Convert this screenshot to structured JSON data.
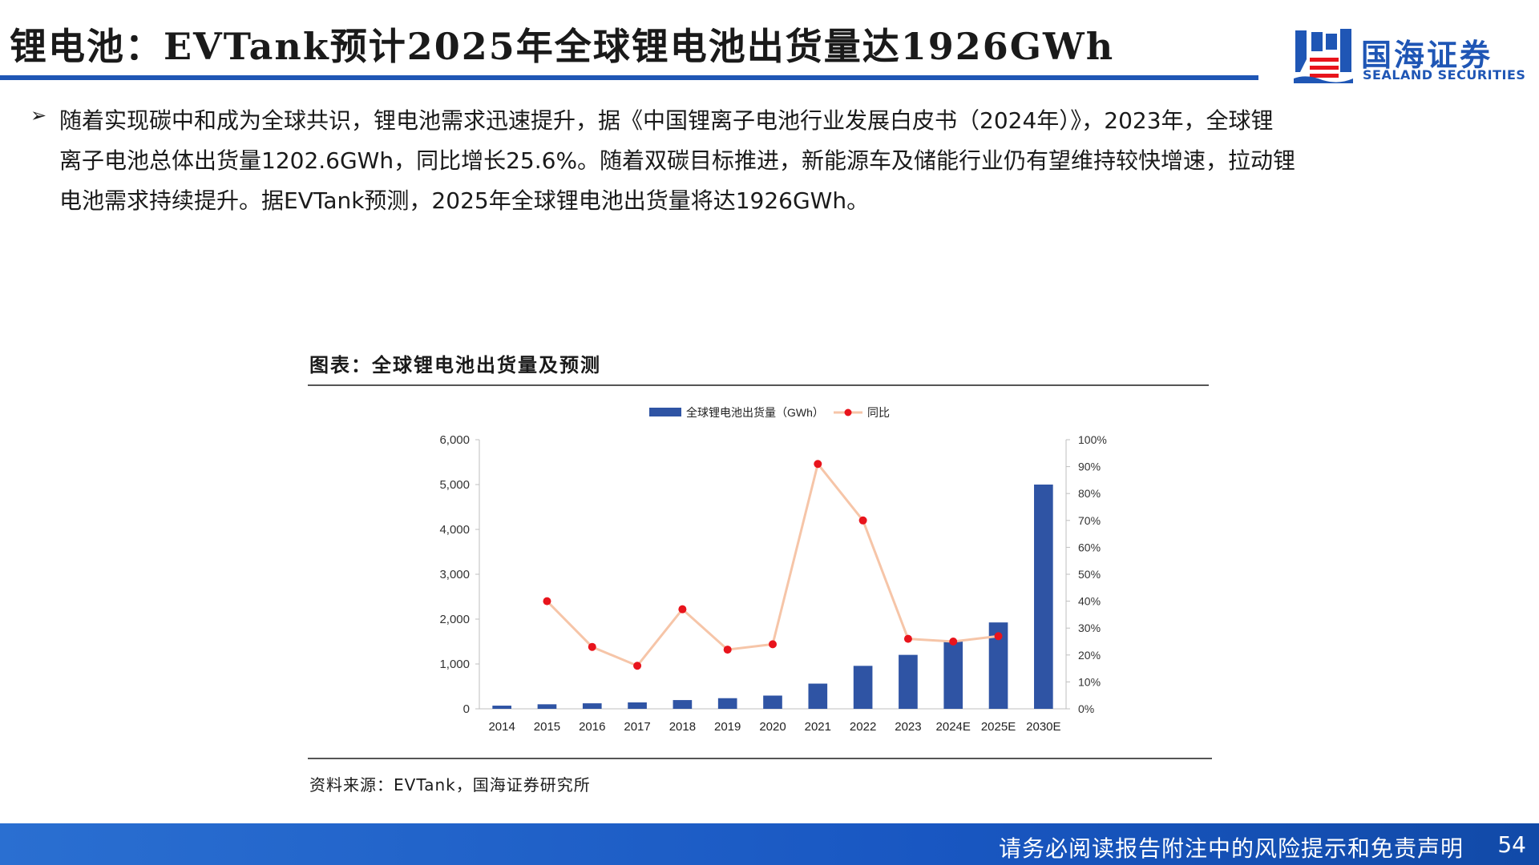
{
  "header": {
    "title": "锂电池：EVTank预计2025年全球锂电池出货量达1926GWh",
    "logo_cn": "国海证券",
    "logo_en": "SEALAND SECURITIES"
  },
  "bullet": {
    "arrow": "➢",
    "line1": "随着实现碳中和成为全球共识，锂电池需求迅速提升，据《中国锂离子电池行业发展白皮书（2024年）》，2023年，全球锂",
    "line2": "离子电池总体出货量1202.6GWh，同比增长25.6%。随着双碳目标推进，新能源车及储能行业仍有望维持较快增速，拉动锂",
    "line3": "电池需求持续提升。据EVTank预测，2025年全球锂电池出货量将达1926GWh。"
  },
  "figure": {
    "title": "图表：全球锂电池出货量及预测",
    "source": "资料来源：EVTank，国海证券研究所"
  },
  "chart_data": {
    "type": "bar",
    "title": "",
    "categories": [
      "2014",
      "2015",
      "2016",
      "2017",
      "2018",
      "2019",
      "2020",
      "2021",
      "2022",
      "2023",
      "2024E",
      "2025E",
      "2030E"
    ],
    "series": [
      {
        "name": "全球锂电池出货量（GWh）",
        "type": "bar",
        "axis": "left",
        "color": "#2f54a4",
        "values": [
          71,
          101,
          123,
          143,
          195,
          237,
          295,
          562,
          958,
          1203,
          1500,
          1926,
          5000
        ]
      },
      {
        "name": "同比",
        "type": "line",
        "axis": "right",
        "line_color": "#f6c5a8",
        "marker_color": "#e8141c",
        "values": [
          null,
          0.4,
          0.23,
          0.16,
          0.37,
          0.22,
          0.24,
          0.91,
          0.7,
          0.26,
          0.25,
          0.27,
          null
        ]
      }
    ],
    "ylim_left": [
      0,
      6000
    ],
    "yticks_left": [
      "0",
      "1,000",
      "2,000",
      "3,000",
      "4,000",
      "5,000",
      "6,000"
    ],
    "ylim_right": [
      0,
      1.0
    ],
    "yticks_right": [
      "0%",
      "10%",
      "20%",
      "30%",
      "40%",
      "50%",
      "60%",
      "70%",
      "80%",
      "90%",
      "100%"
    ],
    "legend_position": "top-center",
    "grid": false
  },
  "footer": {
    "disclaimer": "请务必阅读报告附注中的风险提示和免责声明",
    "page": "54"
  },
  "colors": {
    "brand_blue": "#1f56b5",
    "bar_blue": "#2f54a4",
    "line_peach": "#f6c5a8",
    "marker_red": "#e8141c"
  }
}
